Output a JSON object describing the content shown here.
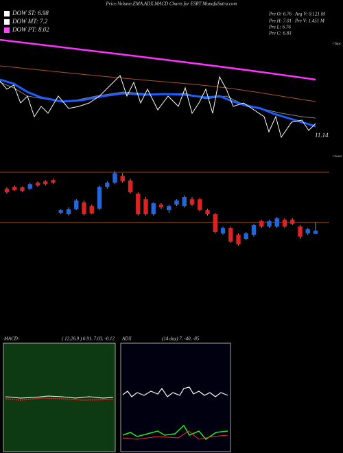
{
  "chart_data": {
    "type": "candlestick",
    "title": "Price,Volume,EMA,ADX,MACD Charts for ESRT MunafaSutra.com",
    "legend": [
      {
        "label": "DOW ST: 6.98",
        "color": "#ffffff"
      },
      {
        "label": "DOW MT: 7.2",
        "color": "#ffffff"
      },
      {
        "label": "DOW PT: 8.02",
        "color": "#ff44ff"
      }
    ],
    "info": [
      "Pre  O: 6.76",
      "Pre  H: 7.01",
      "Pre  L: 6.76",
      "Pre  C: 6.83"
    ],
    "volume_info": [
      "Avg V: 0.121 M",
      "Pre  V: 1.451 M"
    ],
    "price_label": "11.14",
    "tops_label": "<Tops",
    "lows_label": "<Lows",
    "macd_label": "MACD:",
    "macd_params": "( 12,26,9 ) 6.91, 7.03, -0.12",
    "adx_label": "ADX",
    "adx_params": "(14  day) 7, -40, -85",
    "up_color": "#2266dd",
    "down_color": "#dd2222",
    "ylim": [
      6.5,
      8.2
    ],
    "levels": [
      8.11,
      7.01
    ],
    "open": [
      7.75,
      7.79,
      7.78,
      7.75,
      7.88,
      7.91,
      7.94,
      7.22,
      7.19,
      7.3,
      7.45,
      7.37,
      7.31,
      7.79,
      7.88,
      8.03,
      7.93,
      7.64,
      7.52,
      7.19,
      7.4,
      7.28,
      7.4,
      7.37,
      7.52,
      7.52,
      7.28,
      7.19,
      6.77,
      6.89,
      6.74,
      6.65,
      6.74,
      7.04,
      6.92,
      6.92,
      7.07,
      7.07,
      6.92,
      6.77,
      6.76
    ],
    "high": [
      7.78,
      7.82,
      7.8,
      7.88,
      7.91,
      7.94,
      7.97,
      7.3,
      7.34,
      7.52,
      7.49,
      7.4,
      7.82,
      7.91,
      8.14,
      8.09,
      7.97,
      7.67,
      7.57,
      7.45,
      7.43,
      7.4,
      7.52,
      7.6,
      7.57,
      7.55,
      7.31,
      7.22,
      6.92,
      6.92,
      6.77,
      6.8,
      6.98,
      7.07,
      7.07,
      7.13,
      7.1,
      7.1,
      6.95,
      6.89,
      7.01
    ],
    "low": [
      7.64,
      7.7,
      7.67,
      7.72,
      7.79,
      7.82,
      7.85,
      7.19,
      7.16,
      7.28,
      7.16,
      7.19,
      7.28,
      7.75,
      7.85,
      7.88,
      7.64,
      7.16,
      7.16,
      7.16,
      7.3,
      7.22,
      7.37,
      7.34,
      7.37,
      7.25,
      7.16,
      6.77,
      6.74,
      6.56,
      6.5,
      6.62,
      6.7,
      6.89,
      6.89,
      6.89,
      6.89,
      6.95,
      6.65,
      6.74,
      6.76
    ],
    "close": [
      7.67,
      7.72,
      7.7,
      7.85,
      7.82,
      7.85,
      7.88,
      7.28,
      7.3,
      7.49,
      7.19,
      7.21,
      7.79,
      7.88,
      8.09,
      7.91,
      7.67,
      7.19,
      7.19,
      7.43,
      7.34,
      7.37,
      7.49,
      7.57,
      7.4,
      7.28,
      7.19,
      6.8,
      6.89,
      6.59,
      6.53,
      6.77,
      6.95,
      6.92,
      7.04,
      7.1,
      6.92,
      6.98,
      6.7,
      6.86,
      6.83
    ]
  }
}
